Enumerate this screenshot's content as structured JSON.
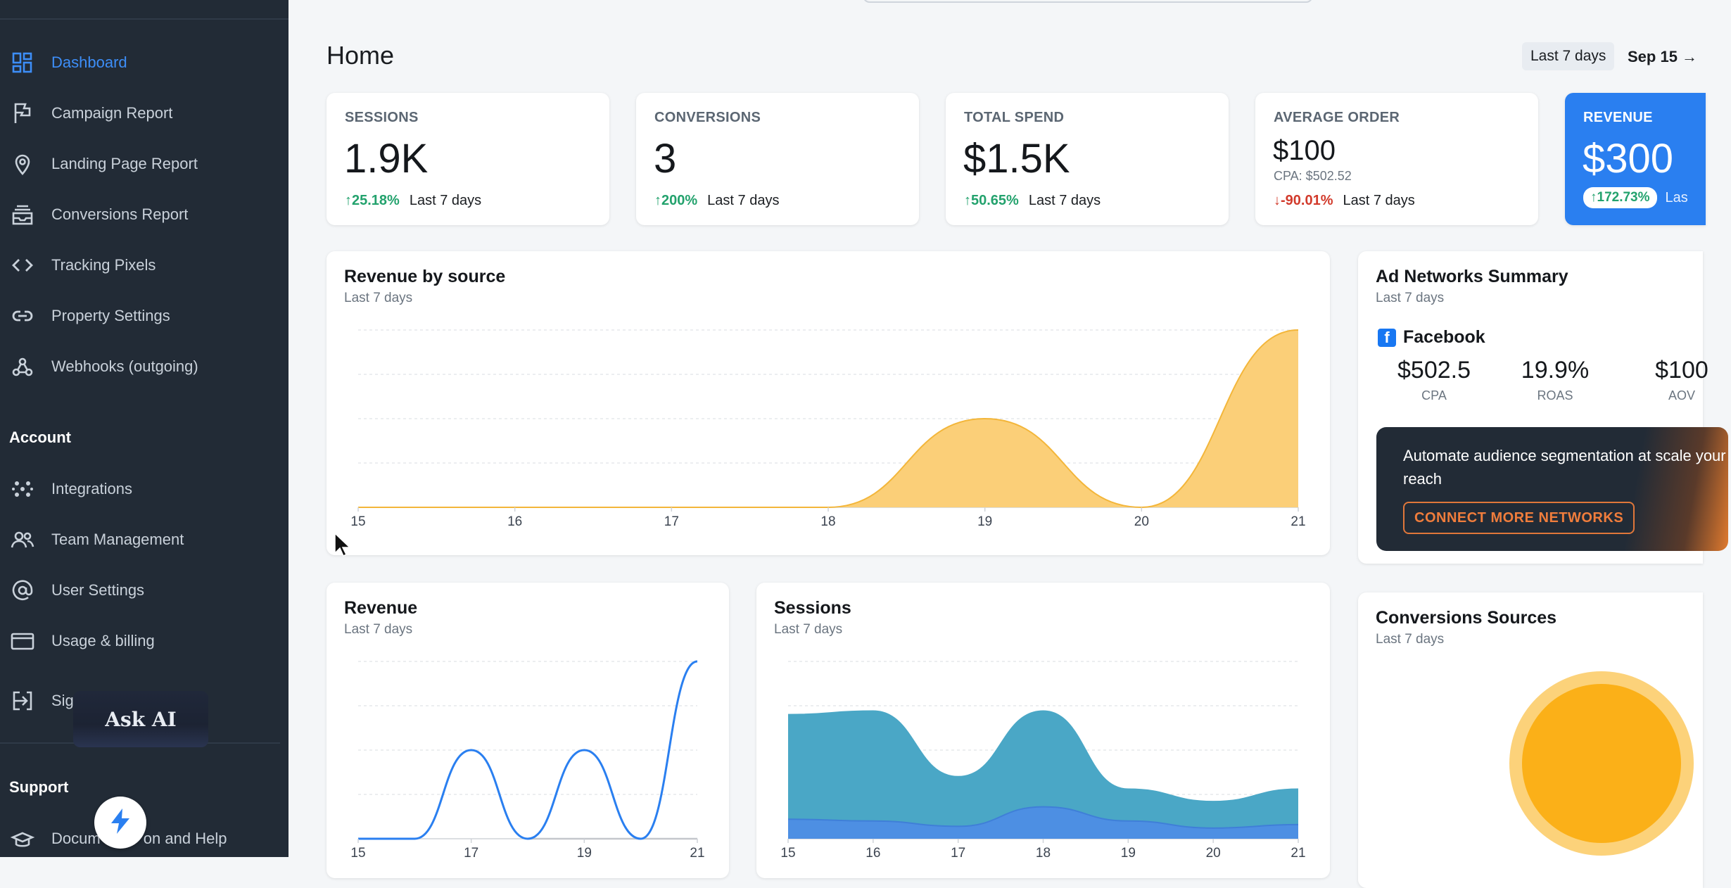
{
  "sidebar": {
    "items": [
      {
        "label": "Dashboard",
        "icon": "dashboard-icon",
        "active": true
      },
      {
        "label": "Campaign Report",
        "icon": "flag-icon"
      },
      {
        "label": "Landing Page Report",
        "icon": "map-pin-icon"
      },
      {
        "label": "Conversions Report",
        "icon": "inbox-stack-icon"
      },
      {
        "label": "Tracking Pixels",
        "icon": "code-icon"
      },
      {
        "label": "Property Settings",
        "icon": "link-icon"
      },
      {
        "label": "Webhooks (outgoing)",
        "icon": "webhook-icon"
      }
    ],
    "account_title": "Account",
    "account_items": [
      {
        "label": "Integrations",
        "icon": "dots-grid-icon"
      },
      {
        "label": "Team Management",
        "icon": "users-icon"
      },
      {
        "label": "User Settings",
        "icon": "at-sign-icon"
      },
      {
        "label": "Usage & billing",
        "icon": "credit-card-icon"
      },
      {
        "label": "Sig",
        "icon": "sign-out-icon"
      }
    ],
    "support_title": "Support",
    "support_items": [
      {
        "label": "Docum          on and Help",
        "icon": "book-icon"
      }
    ],
    "ask_ai_label": "Ask AI"
  },
  "header": {
    "title": "Home",
    "range_label": "Last 7 days",
    "range_date": "Sep 15 →"
  },
  "kpis": [
    {
      "label": "SESSIONS",
      "value": "1.9K",
      "change": "25.18%",
      "direction": "up",
      "period": "Last 7 days"
    },
    {
      "label": "CONVERSIONS",
      "value": "3",
      "change": "200%",
      "direction": "up",
      "period": "Last 7 days"
    },
    {
      "label": "TOTAL SPEND",
      "value": "$1.5K",
      "change": "50.65%",
      "direction": "up",
      "period": "Last 7 days"
    },
    {
      "label": "AVERAGE ORDER",
      "value": "$100",
      "sub": "CPA: $502.52",
      "change": "-90.01%",
      "direction": "down",
      "period": "Last 7 days"
    },
    {
      "label": "REVENUE",
      "value": "$300",
      "change": "172.73%",
      "direction": "up",
      "period": "Las"
    }
  ],
  "revenue_by_source": {
    "title": "Revenue by source",
    "subtitle": "Last 7 days"
  },
  "ad_networks": {
    "title": "Ad Networks Summary",
    "subtitle": "Last 7 days",
    "network": "Facebook",
    "metrics": [
      {
        "value": "$502.5",
        "label": "CPA"
      },
      {
        "value": "19.9%",
        "label": "ROAS"
      },
      {
        "value": "$100",
        "label": "AOV"
      }
    ],
    "promo_text": "Automate audience segmentation at scale your reach",
    "promo_button": "CONNECT MORE NETWORKS"
  },
  "revenue_panel": {
    "title": "Revenue",
    "subtitle": "Last 7 days"
  },
  "sessions_panel": {
    "title": "Sessions",
    "subtitle": "Last 7 days"
  },
  "conversions_panel": {
    "title": "Conversions Sources",
    "subtitle": "Last 7 days"
  },
  "colors": {
    "accent": "#2a7ff0",
    "sidebar_bg": "#222b36",
    "positive": "#23a26d",
    "negative": "#d23b2c",
    "area_orange": "#fbcf78",
    "line_orange": "#f3b63a",
    "line_blue": "#2a7ff0",
    "line_gray": "#c4c7cc",
    "teal": "#4aa7c6",
    "blue_area": "#4d8fe3",
    "donut": "#fbb018"
  },
  "chart_data": [
    {
      "type": "area",
      "title": "Revenue by source",
      "x": [
        "15",
        "16",
        "17",
        "18",
        "19",
        "20",
        "21"
      ],
      "series": [
        {
          "values": [
            0,
            0,
            0,
            0,
            150,
            0,
            300
          ]
        }
      ],
      "ylim": [
        0,
        300
      ],
      "grid": true
    },
    {
      "type": "line",
      "title": "Revenue",
      "x": [
        "15",
        "16",
        "17",
        "18",
        "19",
        "20",
        "21"
      ],
      "x_ticks": [
        "15",
        "17",
        "19",
        "21"
      ],
      "series": [
        {
          "values": [
            0,
            0,
            150,
            0,
            150,
            0,
            300
          ],
          "color": "#2a7ff0",
          "note": "current"
        },
        {
          "values": [
            0,
            0,
            150,
            0,
            0,
            0,
            0
          ],
          "color": "#c4c7cc",
          "note": "previous"
        }
      ],
      "ylim": [
        0,
        300
      ],
      "grid": true
    },
    {
      "type": "area",
      "title": "Sessions",
      "x": [
        "15",
        "16",
        "17",
        "18",
        "19",
        "20",
        "21"
      ],
      "series": [
        {
          "values": [
            350,
            360,
            175,
            360,
            140,
            105,
            140
          ],
          "color": "#4aa7c6"
        },
        {
          "values": [
            55,
            50,
            35,
            90,
            50,
            30,
            40
          ],
          "color": "#4d8fe3"
        }
      ],
      "ylim": [
        0,
        500
      ],
      "grid": true
    },
    {
      "type": "pie",
      "title": "Conversions Sources",
      "slices": [
        {
          "value": 100,
          "color": "#fbb018"
        }
      ]
    }
  ]
}
